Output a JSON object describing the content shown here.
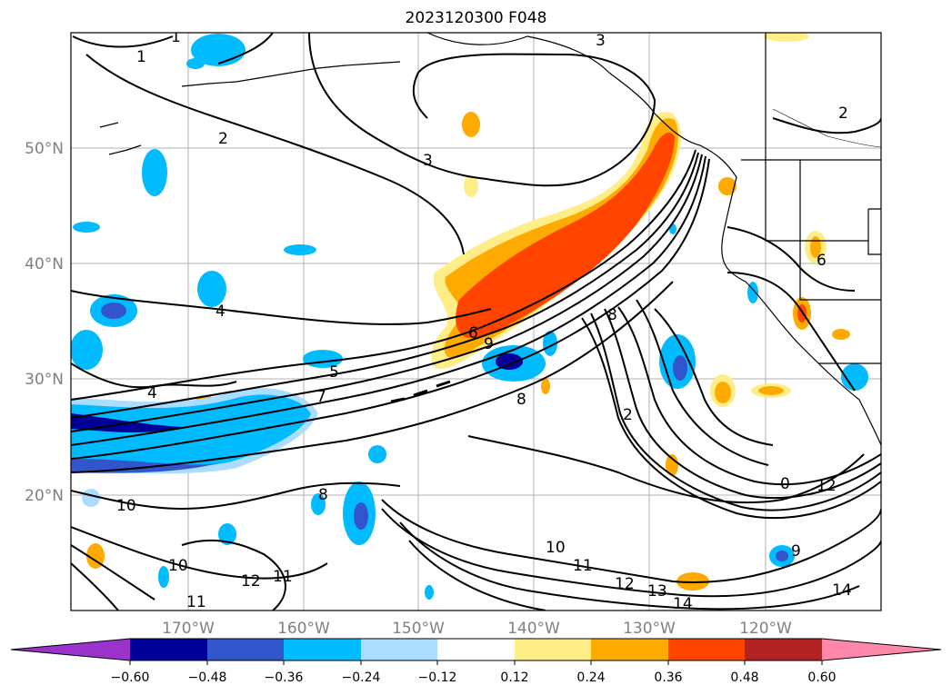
{
  "title": "2023120300 F048",
  "lat_labels": [
    "50°N",
    "40°N",
    "30°N",
    "20°N"
  ],
  "lon_labels": [
    "170°W",
    "160°W",
    "150°W",
    "140°W",
    "130°W",
    "120°W"
  ],
  "colorbar": {
    "ticks": [
      "−0.60",
      "−0.48",
      "−0.36",
      "−0.24",
      "−0.12",
      "0.12",
      "0.24",
      "0.36",
      "0.48",
      "0.60"
    ],
    "colors": [
      "#9933cc",
      "#000099",
      "#3355cc",
      "#00bbff",
      "#aaddff",
      "#ffffff",
      "#ffee88",
      "#ffaa00",
      "#ff4400",
      "#b22222",
      "#ff88aa"
    ]
  },
  "contour_labels": [
    "1",
    "1",
    "2",
    "2",
    "3",
    "3",
    "4",
    "4",
    "5",
    "6",
    "6",
    "7",
    "8",
    "8",
    "8",
    "9",
    "9",
    "10",
    "10",
    "10",
    "11",
    "11",
    "11",
    "12",
    "12",
    "12",
    "13",
    "14",
    "14",
    "0",
    "2"
  ]
}
